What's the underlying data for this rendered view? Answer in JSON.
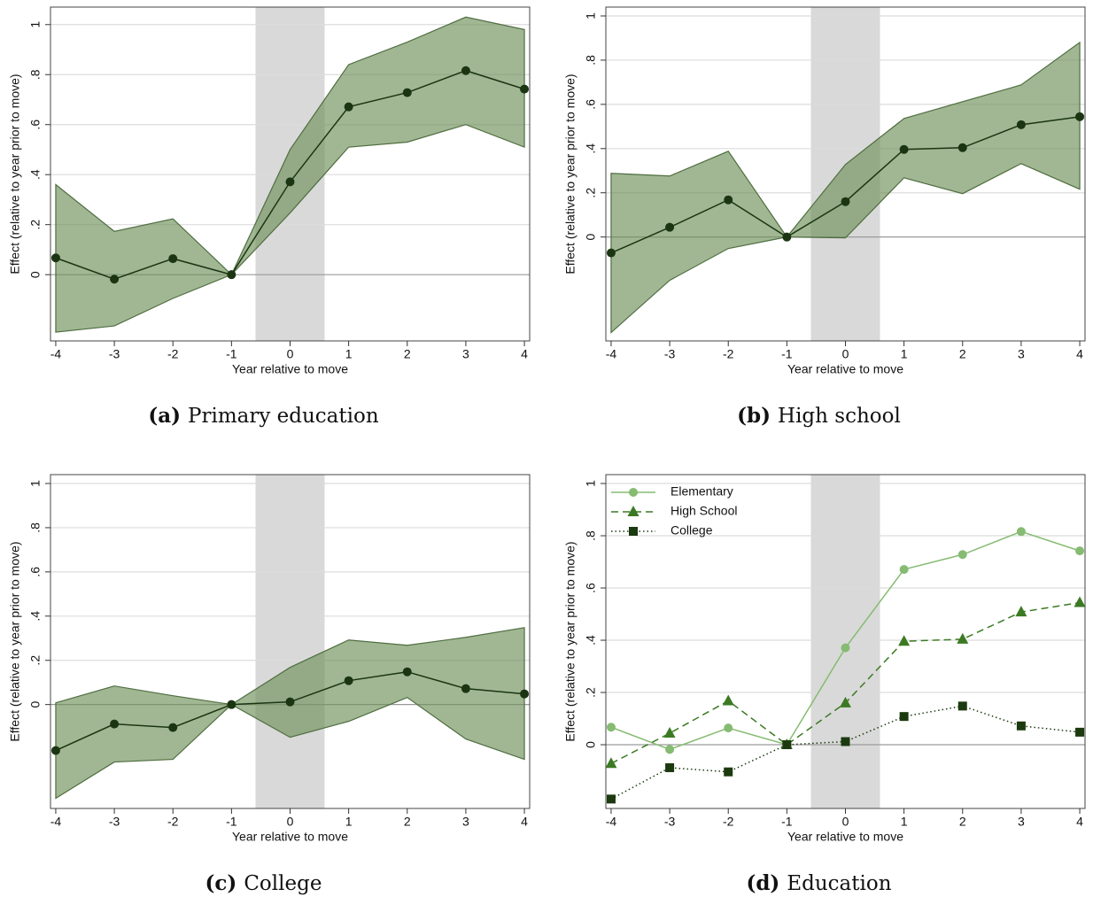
{
  "chart_data": [
    {
      "type": "line",
      "caption_label": "(a)",
      "caption": "Primary education",
      "x_label": "Year relative to move",
      "y_label": "Effect (relative to year prior to move)",
      "x": [
        -4,
        -3,
        -2,
        -1,
        0,
        1,
        2,
        3,
        4
      ],
      "xlim": [
        -4.09,
        4.09
      ],
      "xticks": [
        -4,
        -3,
        -2,
        -1,
        0,
        1,
        2,
        3,
        4
      ],
      "ylim": [
        -0.265,
        1.07
      ],
      "yticks": [
        0,
        {
          "value": 0.2,
          "label": ".2"
        },
        {
          "value": 0.4,
          "label": ".4"
        },
        {
          "value": 0.6,
          "label": ".6"
        },
        {
          "value": 0.8,
          "label": ".8"
        },
        1
      ],
      "grid": true,
      "shade": [
        -0.59,
        0.59
      ],
      "series": [
        {
          "color": "#1b3512",
          "band_color": "#6e9159",
          "line_style": "solid",
          "marker": "circle",
          "values": [
            0.067,
            -0.018,
            0.064,
            0,
            0.371,
            0.671,
            0.728,
            0.816,
            0.742
          ],
          "upper": [
            0.36,
            0.173,
            0.223,
            0,
            0.5,
            0.84,
            0.93,
            1.03,
            0.98
          ],
          "lower": [
            -0.23,
            -0.205,
            -0.095,
            0,
            0.247,
            0.51,
            0.53,
            0.6,
            0.51
          ]
        }
      ]
    },
    {
      "type": "line",
      "caption_label": "(b)",
      "caption": "High school",
      "x_label": "Year relative to move",
      "y_label": "Effect (relative to year prior to move)",
      "x": [
        -4,
        -3,
        -2,
        -1,
        0,
        1,
        2,
        3,
        4
      ],
      "xlim": [
        -4.09,
        4.09
      ],
      "xticks": [
        -4,
        -3,
        -2,
        -1,
        0,
        1,
        2,
        3,
        4
      ],
      "ylim": [
        -0.47,
        1.04
      ],
      "yticks": [
        0,
        {
          "value": 0.2,
          "label": ".2"
        },
        {
          "value": 0.4,
          "label": ".4"
        },
        {
          "value": 0.6,
          "label": ".6"
        },
        {
          "value": 0.8,
          "label": ".8"
        },
        1
      ],
      "grid": true,
      "shade": [
        -0.59,
        0.59
      ],
      "series": [
        {
          "color": "#1b3512",
          "band_color": "#6e9159",
          "line_style": "solid",
          "marker": "circle",
          "values": [
            -0.072,
            0.044,
            0.168,
            0,
            0.16,
            0.396,
            0.404,
            0.508,
            0.544
          ],
          "upper": [
            0.288,
            0.276,
            0.388,
            0,
            0.328,
            0.536,
            0.612,
            0.688,
            0.88
          ],
          "lower": [
            -0.432,
            -0.196,
            -0.052,
            0,
            -0.004,
            0.268,
            0.196,
            0.332,
            0.216
          ]
        }
      ]
    },
    {
      "type": "line",
      "caption_label": "(c)",
      "caption": "College",
      "x_label": "Year relative to move",
      "y_label": "Effect (relative to year prior to move)",
      "x": [
        -4,
        -3,
        -2,
        -1,
        0,
        1,
        2,
        3,
        4
      ],
      "xlim": [
        -4.09,
        4.09
      ],
      "xticks": [
        -4,
        -3,
        -2,
        -1,
        0,
        1,
        2,
        3,
        4
      ],
      "ylim": [
        -0.47,
        1.04
      ],
      "yticks": [
        0,
        {
          "value": 0.2,
          "label": ".2"
        },
        {
          "value": 0.4,
          "label": ".4"
        },
        {
          "value": 0.6,
          "label": ".6"
        },
        {
          "value": 0.8,
          "label": ".8"
        },
        1
      ],
      "grid": true,
      "shade": [
        -0.59,
        0.59
      ],
      "series": [
        {
          "color": "#1b3512",
          "band_color": "#6e9159",
          "line_style": "solid",
          "marker": "circle",
          "values": [
            -0.208,
            -0.088,
            -0.104,
            0,
            0.012,
            0.108,
            0.148,
            0.072,
            0.048
          ],
          "upper": [
            0.008,
            0.084,
            0.04,
            0,
            0.168,
            0.292,
            0.268,
            0.304,
            0.348
          ],
          "lower": [
            -0.424,
            -0.26,
            -0.248,
            0,
            -0.148,
            -0.076,
            0.032,
            -0.156,
            -0.248
          ]
        }
      ]
    },
    {
      "type": "line",
      "caption_label": "(d)",
      "caption": "Education",
      "x_label": "Year relative to move",
      "y_label": "Effect (relative to year prior to move)",
      "x": [
        -4,
        -3,
        -2,
        -1,
        0,
        1,
        2,
        3,
        4
      ],
      "xlim": [
        -4.09,
        4.09
      ],
      "xticks": [
        -4,
        -3,
        -2,
        -1,
        0,
        1,
        2,
        3,
        4
      ],
      "ylim": [
        -0.244,
        1.034
      ],
      "yticks": [
        0,
        {
          "value": 0.2,
          "label": ".2"
        },
        {
          "value": 0.4,
          "label": ".4"
        },
        {
          "value": 0.6,
          "label": ".6"
        },
        {
          "value": 0.8,
          "label": ".8"
        },
        1
      ],
      "grid": true,
      "shade": [
        -0.59,
        0.59
      ],
      "legend": "top-left",
      "series": [
        {
          "name": "Elementary",
          "color": "#86bb72",
          "line_style": "solid",
          "marker": "circle",
          "values": [
            0.067,
            -0.018,
            0.064,
            0,
            0.371,
            0.671,
            0.728,
            0.816,
            0.742
          ]
        },
        {
          "name": "High School",
          "color": "#3b7a22",
          "line_style": "dashed",
          "marker": "triangle",
          "values": [
            -0.072,
            0.044,
            0.168,
            0,
            0.16,
            0.396,
            0.404,
            0.508,
            0.544
          ]
        },
        {
          "name": "College",
          "color": "#1c3a0f",
          "line_style": "dotted",
          "marker": "square",
          "values": [
            -0.208,
            -0.088,
            -0.104,
            0,
            0.012,
            0.108,
            0.148,
            0.072,
            0.048
          ]
        }
      ]
    }
  ]
}
